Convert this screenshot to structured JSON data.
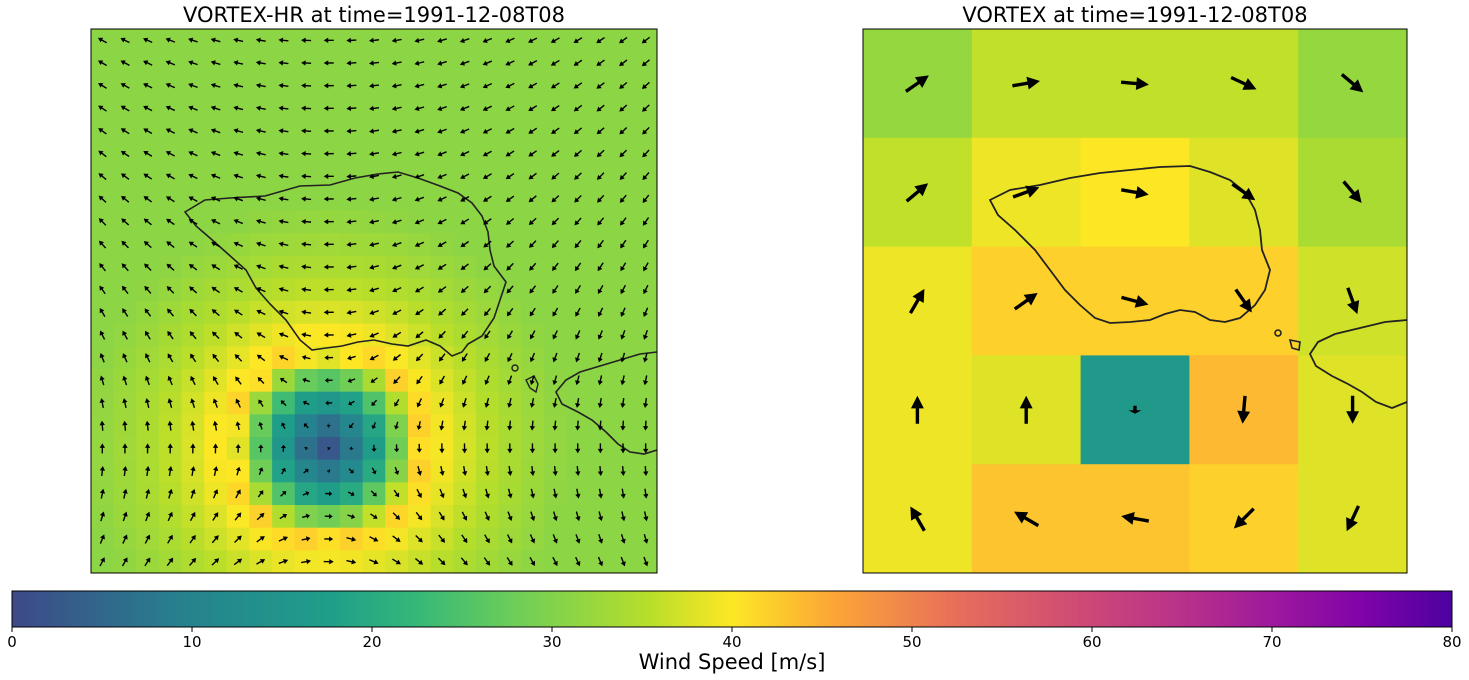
{
  "chart_data": [
    {
      "type": "heatmap",
      "title": "VORTEX-HR at time=1991-12-08T08",
      "grid": {
        "nx": 25,
        "ny": 24
      },
      "field": "wind_speed_with_vectors",
      "max_speed_m_s": 42,
      "vortex_center_speed_m_s": 2,
      "coastline": true,
      "colormap": "shared",
      "axis_ticks": false
    },
    {
      "type": "heatmap",
      "title": "VORTEX at time=1991-12-08T08",
      "grid": {
        "nx": 5,
        "ny": 5
      },
      "speed_rows_m_s": [
        [
          32,
          36,
          36,
          36,
          32
        ],
        [
          36,
          39,
          40,
          38,
          34
        ],
        [
          39,
          42,
          42,
          42,
          37
        ],
        [
          39,
          38,
          16,
          44,
          38
        ],
        [
          39,
          43,
          43,
          42,
          38
        ]
      ],
      "direction_rows_deg": [
        [
          35,
          10,
          -5,
          -25,
          -40
        ],
        [
          40,
          20,
          -10,
          -35,
          -50
        ],
        [
          60,
          35,
          -15,
          -55,
          -70
        ],
        [
          90,
          90,
          -90,
          -95,
          -90
        ],
        [
          120,
          150,
          170,
          225,
          245
        ]
      ],
      "coastline": true,
      "colormap": "shared",
      "axis_ticks": false
    }
  ],
  "colorbar": {
    "label": "Wind Speed [m/s]",
    "min": 0,
    "max": 80,
    "ticks": [
      "0",
      "10",
      "20",
      "30",
      "40",
      "50",
      "60",
      "70",
      "80"
    ],
    "colors": [
      "#3e4989",
      "#26828e",
      "#1f9e89",
      "#35b779",
      "#6ece58",
      "#b5de2b",
      "#fde725",
      "#fca636",
      "#e66c5c",
      "#cc4778",
      "#b52f8c",
      "#9c179e",
      "#7e03a8",
      "#4c02a1"
    ]
  }
}
